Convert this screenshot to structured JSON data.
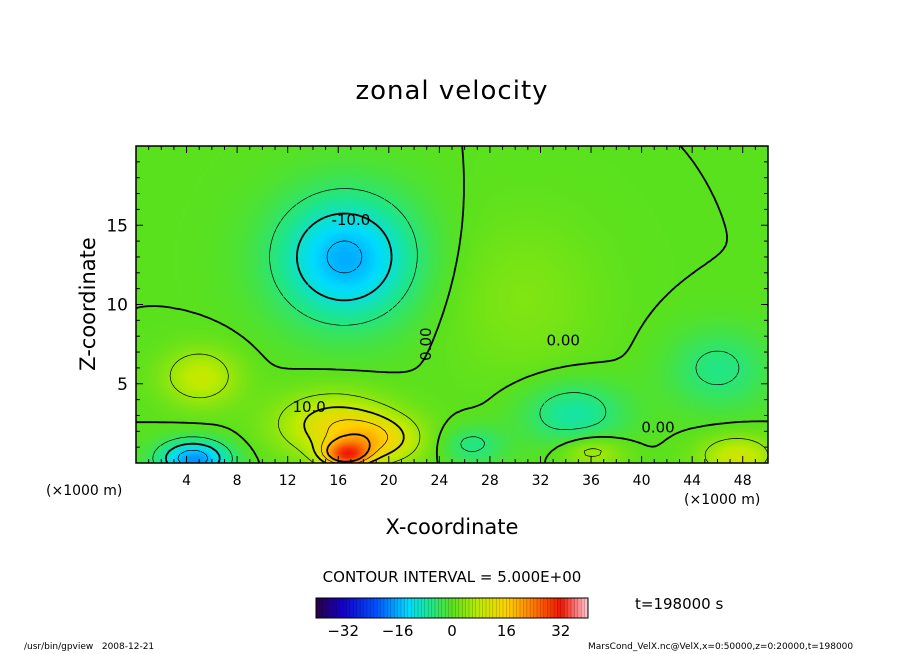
{
  "chart_data": {
    "type": "heatmap",
    "title": "zonal velocity",
    "xlabel": "X-coordinate",
    "ylabel": "Z-coordinate",
    "x_unit": "(×1000 m)",
    "z_unit": "(×1000 m)",
    "xlim": [
      0,
      50
    ],
    "ylim": [
      0,
      20
    ],
    "x_ticks": [
      4,
      8,
      12,
      16,
      20,
      24,
      28,
      32,
      36,
      40,
      44,
      48
    ],
    "y_ticks": [
      5,
      10,
      15
    ],
    "contour_interval_text": "CONTOUR INTERVAL = 5.000E+00",
    "time_text": "t=198000 s",
    "contour_labels": [
      {
        "text": "-10.0",
        "x": 17,
        "z": 15.3
      },
      {
        "text": "0.00",
        "x": 23.0,
        "z": 7.5,
        "rotate": -90
      },
      {
        "text": "0.00",
        "x": 33.8,
        "z": 7.7
      },
      {
        "text": "10.0",
        "x": 13.7,
        "z": 3.5
      },
      {
        "text": "0.00",
        "x": 41.3,
        "z": 2.2
      }
    ],
    "colorbar": {
      "range": [
        -40,
        40
      ],
      "ticks": [
        -32,
        -16,
        0,
        16,
        32
      ]
    },
    "features": [
      {
        "x": 16.5,
        "z": 13.0,
        "value": -16,
        "sx": 5.5,
        "sz": 4.0
      },
      {
        "x": 4.5,
        "z": 0.3,
        "value": -18,
        "sx": 2.8,
        "sz": 1.2
      },
      {
        "x": 15.5,
        "z": 2.5,
        "value": 12,
        "sx": 4.5,
        "sz": 2.0
      },
      {
        "x": 19.0,
        "z": 1.5,
        "value": 12,
        "sx": 3.5,
        "sz": 1.5
      },
      {
        "x": 16.5,
        "z": 0.6,
        "value": 22,
        "sx": 1.8,
        "sz": 0.8
      },
      {
        "x": 5.0,
        "z": 5.5,
        "value": 9,
        "sx": 3.0,
        "sz": 1.8
      },
      {
        "x": 30.5,
        "z": 10.5,
        "value": 3,
        "sx": 6.0,
        "sz": 5.0
      },
      {
        "x": 34.5,
        "z": 3.2,
        "value": -8,
        "sx": 4.0,
        "sz": 2.0
      },
      {
        "x": 46.0,
        "z": 6.0,
        "value": -6,
        "sx": 4.0,
        "sz": 2.5
      },
      {
        "x": 26.5,
        "z": 1.2,
        "value": -6,
        "sx": 2.5,
        "sz": 1.2
      },
      {
        "x": 47.5,
        "z": 0.5,
        "value": 10,
        "sx": 3.0,
        "sz": 1.3
      },
      {
        "x": 36.0,
        "z": 0.8,
        "value": 7,
        "sx": 2.5,
        "sz": 1.0
      }
    ]
  },
  "footer": {
    "left": "/usr/bin/gpview   2008-12-21",
    "right": "MarsCond_VelX.nc@VelX,x=0:50000,z=0:20000,t=198000"
  }
}
